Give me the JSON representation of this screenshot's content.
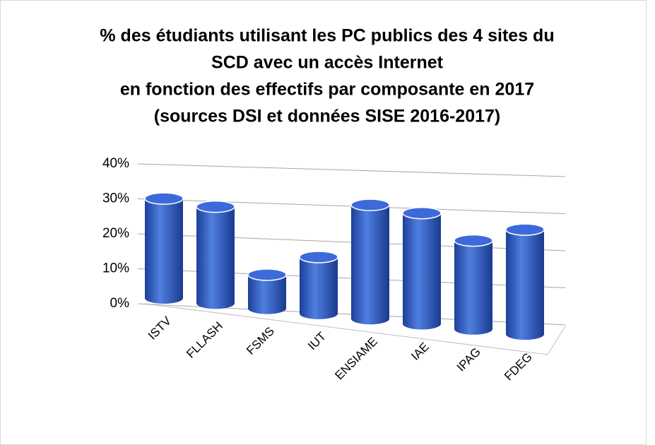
{
  "chart_data": {
    "type": "bar",
    "title": [
      "% des étudiants utilisant les PC publics des 4 sites du",
      "SCD avec un accès Internet",
      "en fonction des effectifs par composante en 2017",
      "(sources DSI et données SISE 2016-2017)"
    ],
    "categories": [
      "ISTV",
      "FLLASH",
      "FSMS",
      "IUT",
      "ENSIAME",
      "IAE",
      "IPAG",
      "FDEG"
    ],
    "values": [
      27,
      26,
      9,
      15,
      30,
      29,
      23,
      27
    ],
    "color": "#2f5bc4",
    "ylim": [
      0,
      40
    ],
    "yticks": [
      {
        "value": 0,
        "label": "0%"
      },
      {
        "value": 10,
        "label": "10%"
      },
      {
        "value": 20,
        "label": "20%"
      },
      {
        "value": 30,
        "label": "30%"
      },
      {
        "value": 40,
        "label": "40%"
      }
    ],
    "grid": true
  }
}
